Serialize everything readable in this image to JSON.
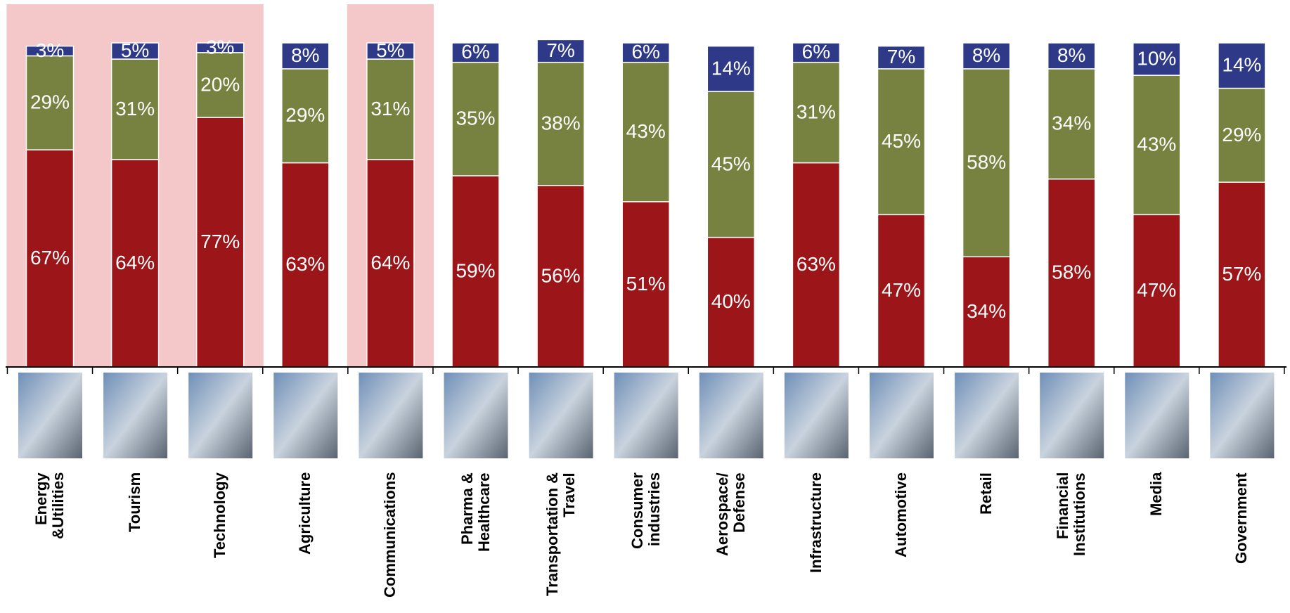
{
  "chart_data": {
    "type": "stacked_bar",
    "categories": [
      "Energy\n&Utilities",
      "Tourism",
      "Technology",
      "Agriculture",
      "Communications",
      "Pharma &\nHealthcare",
      "Transportation &\nTravel",
      "Consumer\nindustries",
      "Aerospace/\nDefense",
      "Infrastructure",
      "Automotive",
      "Retail",
      "Financial\nInstitutions",
      "Media",
      "Government"
    ],
    "series": [
      {
        "color": "#9b1519",
        "values": [
          67,
          64,
          77,
          63,
          64,
          59,
          56,
          51,
          40,
          63,
          47,
          34,
          58,
          47,
          57
        ],
        "value_labels": [
          "67%",
          "64%",
          "77%",
          "63%",
          "64%",
          "59%",
          "56%",
          "51%",
          "40%",
          "63%",
          "47%",
          "34%",
          "58%",
          "47%",
          "57%"
        ]
      },
      {
        "color": "#788240",
        "values": [
          29,
          31,
          20,
          29,
          31,
          35,
          38,
          43,
          45,
          31,
          45,
          58,
          34,
          43,
          29
        ],
        "value_labels": [
          "29%",
          "31%",
          "20%",
          "29%",
          "31%",
          "35%",
          "38%",
          "43%",
          "45%",
          "31%",
          "45%",
          "58%",
          "34%",
          "43%",
          "29%"
        ]
      },
      {
        "color": "#2e3a87",
        "values": [
          3,
          5,
          3,
          8,
          5,
          6,
          7,
          6,
          14,
          6,
          7,
          8,
          8,
          10,
          14
        ],
        "value_labels": [
          "3%",
          "5%",
          "3%",
          "8%",
          "5%",
          "6%",
          "7%",
          "6%",
          "14%",
          "6%",
          "7%",
          "8%",
          "8%",
          "10%",
          "14%"
        ]
      }
    ],
    "ylim": [
      0,
      100
    ],
    "highlight": {
      "indices": [
        0,
        1,
        2,
        4
      ],
      "color": "#f4c7c9"
    }
  }
}
